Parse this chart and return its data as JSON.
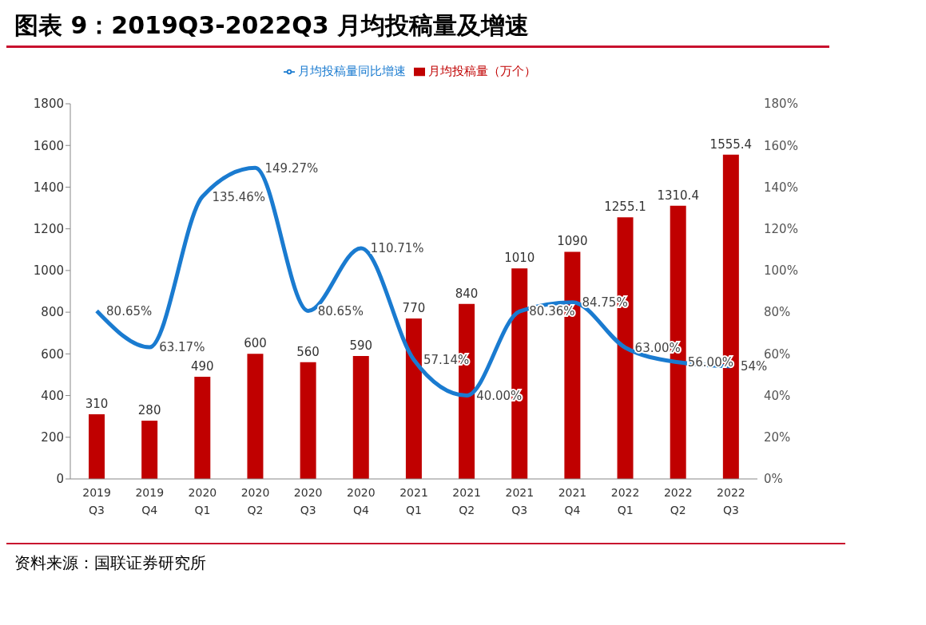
{
  "chart_data": {
    "type": "bar",
    "title": "图表 9：2019Q3-2022Q3 月均投稿量及增速",
    "categories": [
      "2019 Q3",
      "2019 Q4",
      "2020 Q1",
      "2020 Q2",
      "2020 Q3",
      "2020 Q4",
      "2021 Q1",
      "2021 Q2",
      "2021 Q3",
      "2021 Q4",
      "2022 Q1",
      "2022 Q2",
      "2022 Q3"
    ],
    "series": [
      {
        "name": "月均投稿量（万个）",
        "color": "#c00000",
        "values": [
          310,
          280,
          490,
          600,
          560,
          590,
          770,
          840,
          1010,
          1090,
          1255.1,
          1310.4,
          1555.4
        ],
        "value_labels": [
          "310",
          "280",
          "490",
          "600",
          "560",
          "590",
          "770",
          "840",
          "1010",
          "1090",
          "1255.1",
          "1310.4",
          "1555.4"
        ]
      },
      {
        "name": "月均投稿量同比增速",
        "type": "line",
        "axis": "y2",
        "color": "#1a7bd0",
        "values": [
          80.65,
          63.17,
          135.46,
          149.27,
          80.65,
          110.71,
          57.14,
          40.0,
          80.36,
          84.75,
          63.0,
          56.0,
          54
        ],
        "value_labels": [
          "80.65%",
          "63.17%",
          "135.46%",
          "149.27%",
          "80.65%",
          "110.71%",
          "57.14%",
          "40.00%",
          "80.36%",
          "84.75%",
          "63.00%",
          "56.00%",
          "54%"
        ]
      }
    ],
    "ylim": [
      0,
      1800
    ],
    "yticks": [
      0,
      200,
      400,
      600,
      800,
      1000,
      1200,
      1400,
      1600,
      1800
    ],
    "y2lim": [
      0,
      180
    ],
    "y2ticks": [
      {
        "value": 0,
        "label": "0%"
      },
      {
        "value": 20,
        "label": "20%"
      },
      {
        "value": 40,
        "label": "40%"
      },
      {
        "value": 60,
        "label": "60%"
      },
      {
        "value": 80,
        "label": "80%"
      },
      {
        "value": 100,
        "label": "100%"
      },
      {
        "value": 120,
        "label": "120%"
      },
      {
        "value": 140,
        "label": "140%"
      },
      {
        "value": 160,
        "label": "160%"
      },
      {
        "value": 180,
        "label": "180%"
      }
    ],
    "grid": false,
    "legend": "top",
    "marker": "none",
    "line_style": "solid",
    "annotations": [
      "资料来源：国联证券研究所"
    ]
  }
}
